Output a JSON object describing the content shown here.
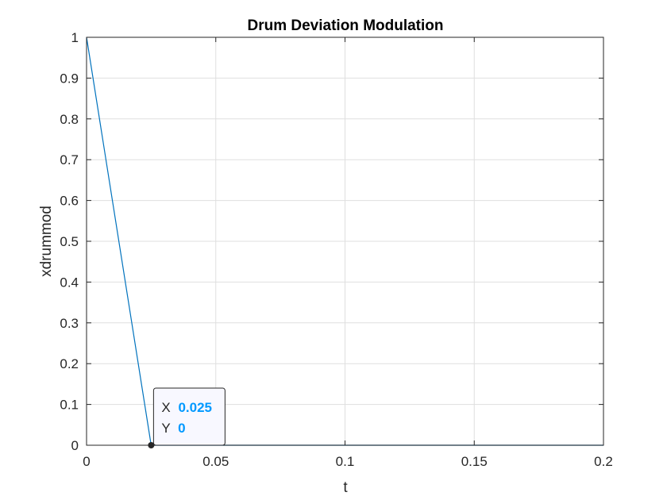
{
  "chart_data": {
    "type": "line",
    "title": "Drum Deviation Modulation",
    "xlabel": "t",
    "ylabel": "xdrummod",
    "xlim": [
      0,
      0.2
    ],
    "ylim": [
      0,
      1
    ],
    "xticks": [
      0,
      0.05,
      0.1,
      0.15,
      0.2
    ],
    "xtick_labels": [
      "0",
      "0.05",
      "0.1",
      "0.15",
      "0.2"
    ],
    "yticks": [
      0,
      0.1,
      0.2,
      0.3,
      0.4,
      0.5,
      0.6,
      0.7,
      0.8,
      0.9,
      1
    ],
    "ytick_labels": [
      "0",
      "0.1",
      "0.2",
      "0.3",
      "0.4",
      "0.5",
      "0.6",
      "0.7",
      "0.8",
      "0.9",
      "1"
    ],
    "grid": true,
    "series": [
      {
        "x": [
          0,
          0.025,
          0.2
        ],
        "y": [
          1,
          0,
          0
        ],
        "color": "#0072bd"
      }
    ],
    "datatip": {
      "x": 0.025,
      "y": 0,
      "x_label": "X",
      "y_label": "Y",
      "x_value": "0.025",
      "y_value": "0",
      "value_color": "#0099ff"
    }
  }
}
